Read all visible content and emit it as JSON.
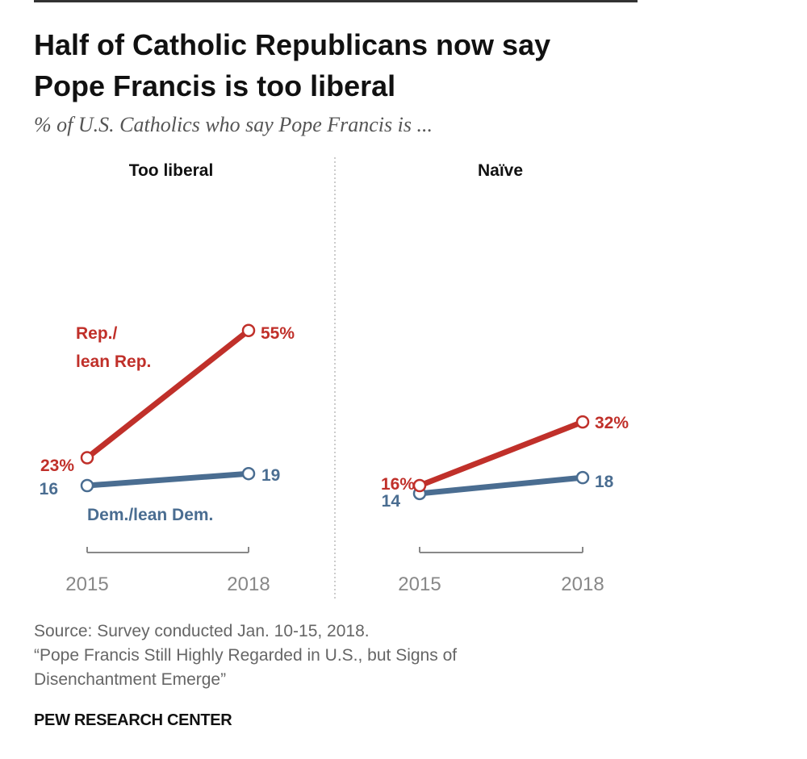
{
  "title_line1": "Half of Catholic Republicans now say",
  "title_line2": "Pope Francis is too liberal",
  "subtitle": "% of U.S. Catholics who say Pope Francis is ...",
  "colors": {
    "rep": "#c0302a",
    "dem": "#4a6d91",
    "axis": "#888888",
    "text": "#111111"
  },
  "chart_data": [
    {
      "type": "line",
      "title": "Too liberal",
      "x": [
        "2015",
        "2018"
      ],
      "series": [
        {
          "name": "Rep./lean Rep.",
          "label_lines": [
            "Rep./",
            "lean Rep."
          ],
          "values": [
            23,
            55
          ],
          "point_labels": [
            "23%",
            "55%"
          ]
        },
        {
          "name": "Dem./lean Dem.",
          "label_lines": [
            "Dem./lean Dem."
          ],
          "values": [
            16,
            19
          ],
          "point_labels": [
            "16",
            "19"
          ]
        }
      ]
    },
    {
      "type": "line",
      "title": "Naïve",
      "x": [
        "2015",
        "2018"
      ],
      "series": [
        {
          "name": "Rep./lean Rep.",
          "label_lines": [],
          "values": [
            16,
            32
          ],
          "point_labels": [
            "16%",
            "32%"
          ]
        },
        {
          "name": "Dem./lean Dem.",
          "label_lines": [],
          "values": [
            14,
            18
          ],
          "point_labels": [
            "14",
            "18"
          ]
        }
      ]
    }
  ],
  "footer": {
    "source": "Source: Survey conducted Jan. 10-15, 2018.",
    "report_line1": "“Pope Francis Still Highly Regarded in U.S., but Signs of",
    "report_line2": "Disenchantment Emerge”",
    "org": "PEW RESEARCH CENTER"
  }
}
